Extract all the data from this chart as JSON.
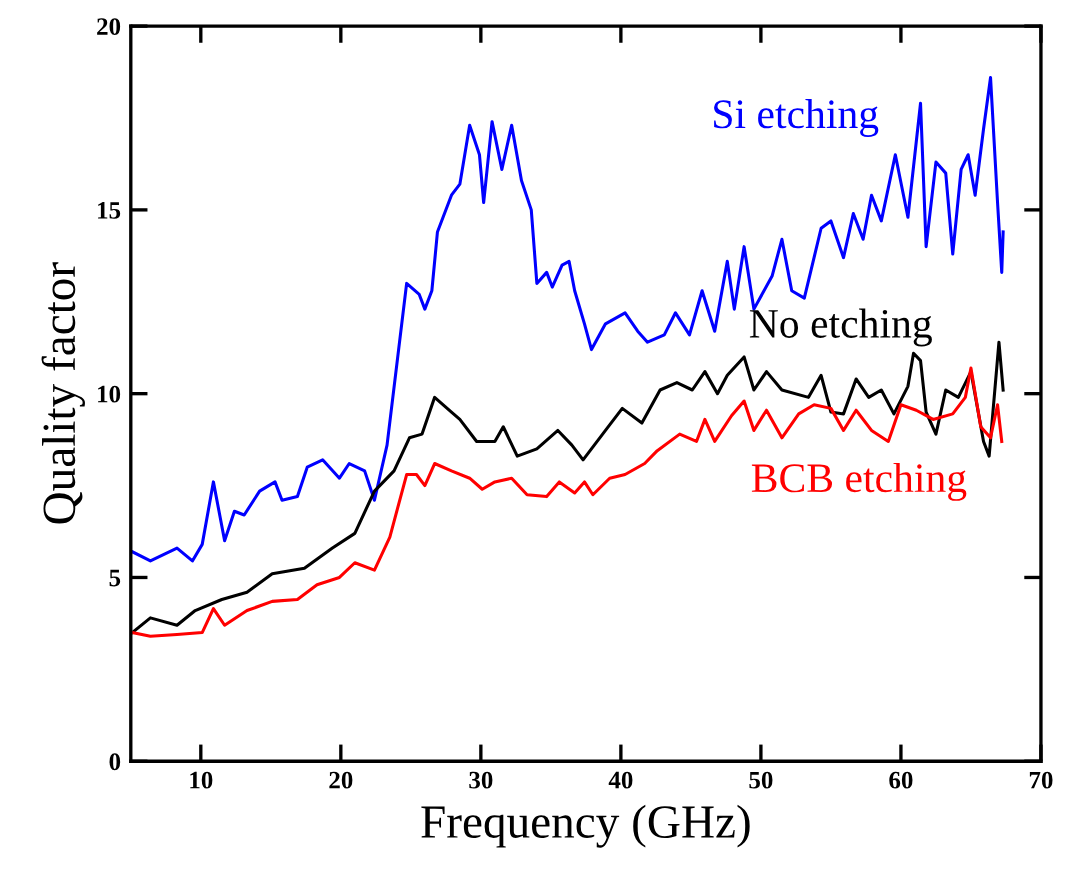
{
  "chart_data": {
    "type": "line",
    "xlabel": "Frequency (GHz)",
    "ylabel": "Quality factor",
    "xlim": [
      5,
      70
    ],
    "ylim": [
      0,
      20
    ],
    "xticks": [
      10,
      20,
      30,
      40,
      50,
      60,
      70
    ],
    "yticks": [
      0,
      5,
      10,
      15,
      20
    ],
    "grid": false,
    "legend": false,
    "marker": "none",
    "line_style": "solid",
    "series": [
      {
        "name": "Si etching",
        "color": "#0000ff",
        "x": [
          5.1,
          6.4,
          8.3,
          9.4,
          10.1,
          10.9,
          11.7,
          12.4,
          13.1,
          14.2,
          15.3,
          15.8,
          16.9,
          17.6,
          18.7,
          19.9,
          20.6,
          21.7,
          22.4,
          23.3,
          24.7,
          25.6,
          26.0,
          26.5,
          26.9,
          27.9,
          28.5,
          29.2,
          29.9,
          30.2,
          30.8,
          31.5,
          32.2,
          32.9,
          33.6,
          34.0,
          34.7,
          35.1,
          35.8,
          36.3,
          36.7,
          37.4,
          37.9,
          38.9,
          40.3,
          41.2,
          41.9,
          43.1,
          43.9,
          44.9,
          45.8,
          46.7,
          47.6,
          48.1,
          48.8,
          49.5,
          50.8,
          51.5,
          52.2,
          53.1,
          54.3,
          55.0,
          55.9,
          56.6,
          57.3,
          57.9,
          58.6,
          59.6,
          60.5,
          61.4,
          61.8,
          62.5,
          63.2,
          63.7,
          64.3,
          64.8,
          65.3,
          65.9,
          66.4,
          66.9,
          67.2,
          67.3
        ],
        "values": [
          5.7,
          5.45,
          5.8,
          5.45,
          5.9,
          7.6,
          6.0,
          6.8,
          6.7,
          7.35,
          7.6,
          7.1,
          7.2,
          8.0,
          8.2,
          7.7,
          8.1,
          7.9,
          7.1,
          8.6,
          13.0,
          12.7,
          12.3,
          12.8,
          14.4,
          15.4,
          15.7,
          17.3,
          16.5,
          15.2,
          17.4,
          16.1,
          17.3,
          15.8,
          15.0,
          13.0,
          13.3,
          12.9,
          13.5,
          13.6,
          12.8,
          11.9,
          11.2,
          11.9,
          12.2,
          11.7,
          11.4,
          11.6,
          12.2,
          11.6,
          12.8,
          11.7,
          13.6,
          12.3,
          14.0,
          12.3,
          13.2,
          14.2,
          12.8,
          12.6,
          14.5,
          14.7,
          13.7,
          14.9,
          14.2,
          15.4,
          14.7,
          16.5,
          14.8,
          17.9,
          14.0,
          16.3,
          16.0,
          13.8,
          16.1,
          16.5,
          15.4,
          17.2,
          18.6,
          15.2,
          13.3,
          14.4
        ]
      },
      {
        "name": "No etching",
        "color": "#000000",
        "x": [
          5.1,
          6.4,
          8.3,
          9.6,
          11.5,
          13.3,
          15.1,
          17.4,
          19.4,
          21.0,
          22.4,
          23.8,
          24.9,
          25.8,
          26.7,
          27.9,
          28.5,
          29.7,
          31.0,
          31.6,
          32.6,
          34.0,
          35.5,
          36.5,
          37.3,
          38.9,
          40.1,
          41.5,
          42.8,
          44.0,
          45.1,
          46.0,
          46.9,
          47.6,
          48.8,
          49.5,
          50.4,
          51.5,
          53.4,
          54.3,
          55.0,
          55.9,
          56.8,
          57.7,
          58.6,
          59.5,
          60.5,
          60.9,
          61.4,
          61.8,
          62.5,
          63.2,
          64.1,
          65.0,
          65.9,
          66.3,
          67.0,
          67.3
        ],
        "values": [
          3.5,
          3.9,
          3.7,
          4.1,
          4.4,
          4.6,
          5.1,
          5.25,
          5.8,
          6.2,
          7.35,
          7.9,
          8.8,
          8.9,
          9.9,
          9.5,
          9.3,
          8.7,
          8.7,
          9.1,
          8.3,
          8.5,
          9.0,
          8.6,
          8.2,
          9.0,
          9.6,
          9.2,
          10.1,
          10.3,
          10.1,
          10.6,
          10.0,
          10.5,
          11.0,
          10.1,
          10.6,
          10.1,
          9.9,
          10.5,
          9.5,
          9.45,
          10.4,
          9.9,
          10.1,
          9.45,
          10.2,
          11.1,
          10.9,
          9.5,
          8.9,
          10.1,
          9.9,
          10.6,
          8.7,
          8.3,
          11.4,
          10.1
        ]
      },
      {
        "name": "BCB etching",
        "color": "#ff0000",
        "x": [
          5.1,
          6.4,
          8.3,
          10.1,
          10.9,
          11.7,
          13.3,
          15.1,
          16.9,
          18.3,
          19.9,
          21.0,
          22.4,
          23.5,
          24.7,
          25.4,
          26.0,
          26.7,
          27.9,
          29.2,
          30.1,
          31.0,
          32.2,
          33.3,
          34.7,
          35.6,
          36.7,
          37.4,
          38.0,
          39.2,
          40.3,
          41.7,
          42.6,
          44.2,
          45.4,
          46.0,
          46.7,
          47.9,
          48.8,
          49.5,
          50.4,
          51.5,
          52.7,
          53.8,
          55.0,
          55.9,
          56.8,
          57.9,
          59.1,
          60.0,
          61.1,
          62.3,
          63.7,
          64.6,
          65.0,
          65.7,
          66.4,
          66.9,
          67.2
        ],
        "values": [
          3.5,
          3.4,
          3.45,
          3.5,
          4.15,
          3.7,
          4.1,
          4.35,
          4.4,
          4.8,
          5.0,
          5.4,
          5.2,
          6.1,
          7.8,
          7.8,
          7.5,
          8.1,
          7.9,
          7.7,
          7.4,
          7.6,
          7.7,
          7.25,
          7.2,
          7.6,
          7.3,
          7.6,
          7.25,
          7.7,
          7.8,
          8.1,
          8.45,
          8.9,
          8.7,
          9.3,
          8.7,
          9.4,
          9.8,
          9.0,
          9.55,
          8.8,
          9.45,
          9.7,
          9.6,
          9.0,
          9.55,
          9.0,
          8.7,
          9.7,
          9.55,
          9.3,
          9.45,
          9.9,
          10.7,
          9.1,
          8.8,
          9.7,
          8.7
        ]
      }
    ]
  }
}
